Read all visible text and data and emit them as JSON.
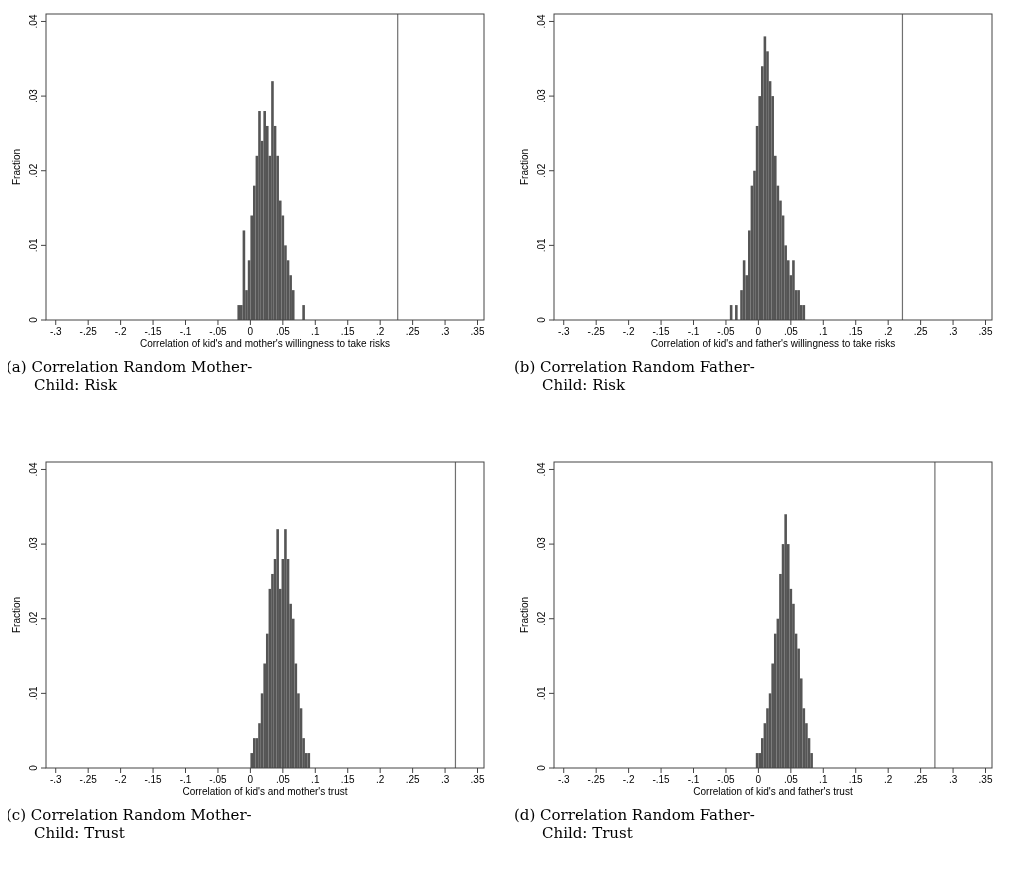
{
  "chart_data": [
    {
      "type": "histogram",
      "title": "(a) Correlation Random Mother-Child: Risk",
      "xlabel": "Correlation of kid's and mother's willingness to take risks",
      "ylabel": "Fraction",
      "color": "#555555",
      "bins": [
        -0.02,
        -0.016,
        -0.012,
        -0.008,
        -0.004,
        0,
        0.004,
        0.008,
        0.012,
        0.016,
        0.02,
        0.024,
        0.028,
        0.032,
        0.036,
        0.04,
        0.044,
        0.048,
        0.052,
        0.056,
        0.06,
        0.064,
        0.068,
        0.072,
        0.076,
        0.08,
        0.084
      ],
      "values": [
        0.002,
        0.002,
        0.012,
        0.004,
        0.008,
        0.014,
        0.018,
        0.022,
        0.028,
        0.024,
        0.028,
        0.026,
        0.022,
        0.032,
        0.026,
        0.022,
        0.016,
        0.014,
        0.01,
        0.008,
        0.006,
        0.004,
        0,
        0,
        0,
        0.002
      ],
      "xlim": [
        -0.315,
        0.36
      ],
      "ylim": [
        0,
        0.041
      ],
      "xticks": [
        {
          "value": -0.3,
          "label": "-.3"
        },
        {
          "value": -0.25,
          "label": "-.25"
        },
        {
          "value": -0.2,
          "label": "-.2"
        },
        {
          "value": -0.15,
          "label": "-.15"
        },
        {
          "value": -0.1,
          "label": "-.1"
        },
        {
          "value": -0.05,
          "label": "-.05"
        },
        {
          "value": 0,
          "label": "0"
        },
        {
          "value": 0.05,
          "label": ".05"
        },
        {
          "value": 0.1,
          "label": ".1"
        },
        {
          "value": 0.15,
          "label": ".15"
        },
        {
          "value": 0.2,
          "label": ".2"
        },
        {
          "value": 0.25,
          "label": ".25"
        },
        {
          "value": 0.3,
          "label": ".3"
        },
        {
          "value": 0.35,
          "label": ".35"
        }
      ],
      "yticks": [
        {
          "value": 0,
          "label": "0"
        },
        {
          "value": 0.01,
          "label": ".01"
        },
        {
          "value": 0.02,
          "label": ".02"
        },
        {
          "value": 0.03,
          "label": ".03"
        },
        {
          "value": 0.04,
          "label": ".04"
        }
      ],
      "ref_lines": [
        {
          "axis": "x",
          "value": 0.227,
          "color": "#707070"
        }
      ],
      "grid": false
    },
    {
      "type": "histogram",
      "title": "(b) Correlation Random Father-Child: Risk",
      "xlabel": "Correlation of kid's and father's willingness to take risks",
      "ylabel": "Fraction",
      "color": "#555555",
      "bins": [
        -0.044,
        -0.04,
        -0.036,
        -0.032,
        -0.028,
        -0.024,
        -0.02,
        -0.016,
        -0.012,
        -0.008,
        -0.004,
        0,
        0.004,
        0.008,
        0.012,
        0.016,
        0.02,
        0.024,
        0.028,
        0.032,
        0.036,
        0.04,
        0.044,
        0.048,
        0.052,
        0.056,
        0.06,
        0.064,
        0.068,
        0.072
      ],
      "values": [
        0.002,
        0,
        0.002,
        0,
        0.004,
        0.008,
        0.006,
        0.012,
        0.018,
        0.02,
        0.026,
        0.03,
        0.034,
        0.038,
        0.036,
        0.032,
        0.03,
        0.022,
        0.018,
        0.016,
        0.014,
        0.01,
        0.008,
        0.006,
        0.008,
        0.004,
        0.004,
        0.002,
        0.002
      ],
      "xlim": [
        -0.315,
        0.36
      ],
      "ylim": [
        0,
        0.041
      ],
      "xticks": [
        {
          "value": -0.3,
          "label": "-.3"
        },
        {
          "value": -0.25,
          "label": "-.25"
        },
        {
          "value": -0.2,
          "label": "-.2"
        },
        {
          "value": -0.15,
          "label": "-.15"
        },
        {
          "value": -0.1,
          "label": "-.1"
        },
        {
          "value": -0.05,
          "label": "-.05"
        },
        {
          "value": 0,
          "label": "0"
        },
        {
          "value": 0.05,
          "label": ".05"
        },
        {
          "value": 0.1,
          "label": ".1"
        },
        {
          "value": 0.15,
          "label": ".15"
        },
        {
          "value": 0.2,
          "label": ".2"
        },
        {
          "value": 0.25,
          "label": ".25"
        },
        {
          "value": 0.3,
          "label": ".3"
        },
        {
          "value": 0.35,
          "label": ".35"
        }
      ],
      "yticks": [
        {
          "value": 0,
          "label": "0"
        },
        {
          "value": 0.01,
          "label": ".01"
        },
        {
          "value": 0.02,
          "label": ".02"
        },
        {
          "value": 0.03,
          "label": ".03"
        },
        {
          "value": 0.04,
          "label": ".04"
        }
      ],
      "ref_lines": [
        {
          "axis": "x",
          "value": 0.222,
          "color": "#707070"
        }
      ],
      "grid": false
    },
    {
      "type": "histogram",
      "title": "(c) Correlation Random Mother-Child: Trust",
      "xlabel": "Correlation of kid's and mother's trust",
      "ylabel": "Fraction",
      "color": "#555555",
      "bins": [
        0,
        0.004,
        0.008,
        0.012,
        0.016,
        0.02,
        0.024,
        0.028,
        0.032,
        0.036,
        0.04,
        0.044,
        0.048,
        0.052,
        0.056,
        0.06,
        0.064,
        0.068,
        0.072,
        0.076,
        0.08,
        0.084,
        0.088,
        0.092
      ],
      "values": [
        0.002,
        0.004,
        0.004,
        0.006,
        0.01,
        0.014,
        0.018,
        0.024,
        0.026,
        0.028,
        0.032,
        0.024,
        0.028,
        0.032,
        0.028,
        0.022,
        0.02,
        0.014,
        0.01,
        0.008,
        0.004,
        0.002,
        0.002
      ],
      "xlim": [
        -0.315,
        0.36
      ],
      "ylim": [
        0,
        0.041
      ],
      "xticks": [
        {
          "value": -0.3,
          "label": "-.3"
        },
        {
          "value": -0.25,
          "label": "-.25"
        },
        {
          "value": -0.2,
          "label": "-.2"
        },
        {
          "value": -0.15,
          "label": "-.15"
        },
        {
          "value": -0.1,
          "label": "-.1"
        },
        {
          "value": -0.05,
          "label": "-.05"
        },
        {
          "value": 0,
          "label": "0"
        },
        {
          "value": 0.05,
          "label": ".05"
        },
        {
          "value": 0.1,
          "label": ".1"
        },
        {
          "value": 0.15,
          "label": ".15"
        },
        {
          "value": 0.2,
          "label": ".2"
        },
        {
          "value": 0.25,
          "label": ".25"
        },
        {
          "value": 0.3,
          "label": ".3"
        },
        {
          "value": 0.35,
          "label": ".35"
        }
      ],
      "yticks": [
        {
          "value": 0,
          "label": "0"
        },
        {
          "value": 0.01,
          "label": ".01"
        },
        {
          "value": 0.02,
          "label": ".02"
        },
        {
          "value": 0.03,
          "label": ".03"
        },
        {
          "value": 0.04,
          "label": ".04"
        }
      ],
      "ref_lines": [
        {
          "axis": "x",
          "value": 0.316,
          "color": "#707070"
        }
      ],
      "grid": false
    },
    {
      "type": "histogram",
      "title": "(d) Correlation Random Father-Child: Trust",
      "xlabel": "Correlation of kid's and father's trust",
      "ylabel": "Fraction",
      "color": "#555555",
      "bins": [
        -0.004,
        0,
        0.004,
        0.008,
        0.012,
        0.016,
        0.02,
        0.024,
        0.028,
        0.032,
        0.036,
        0.04,
        0.044,
        0.048,
        0.052,
        0.056,
        0.06,
        0.064,
        0.068,
        0.072,
        0.076,
        0.08,
        0.084
      ],
      "values": [
        0.002,
        0.002,
        0.004,
        0.006,
        0.008,
        0.01,
        0.014,
        0.018,
        0.02,
        0.026,
        0.03,
        0.034,
        0.03,
        0.024,
        0.022,
        0.018,
        0.016,
        0.012,
        0.008,
        0.006,
        0.004,
        0.002
      ],
      "xlim": [
        -0.315,
        0.36
      ],
      "ylim": [
        0,
        0.041
      ],
      "xticks": [
        {
          "value": -0.3,
          "label": "-.3"
        },
        {
          "value": -0.25,
          "label": "-.25"
        },
        {
          "value": -0.2,
          "label": "-.2"
        },
        {
          "value": -0.15,
          "label": "-.15"
        },
        {
          "value": -0.1,
          "label": "-.1"
        },
        {
          "value": -0.05,
          "label": "-.05"
        },
        {
          "value": 0,
          "label": "0"
        },
        {
          "value": 0.05,
          "label": ".05"
        },
        {
          "value": 0.1,
          "label": ".1"
        },
        {
          "value": 0.15,
          "label": ".15"
        },
        {
          "value": 0.2,
          "label": ".2"
        },
        {
          "value": 0.25,
          "label": ".25"
        },
        {
          "value": 0.3,
          "label": ".3"
        },
        {
          "value": 0.35,
          "label": ".35"
        }
      ],
      "yticks": [
        {
          "value": 0,
          "label": "0"
        },
        {
          "value": 0.01,
          "label": ".01"
        },
        {
          "value": 0.02,
          "label": ".02"
        },
        {
          "value": 0.03,
          "label": ".03"
        },
        {
          "value": 0.04,
          "label": ".04"
        }
      ],
      "ref_lines": [
        {
          "axis": "x",
          "value": 0.272,
          "color": "#707070"
        }
      ],
      "grid": false
    }
  ]
}
